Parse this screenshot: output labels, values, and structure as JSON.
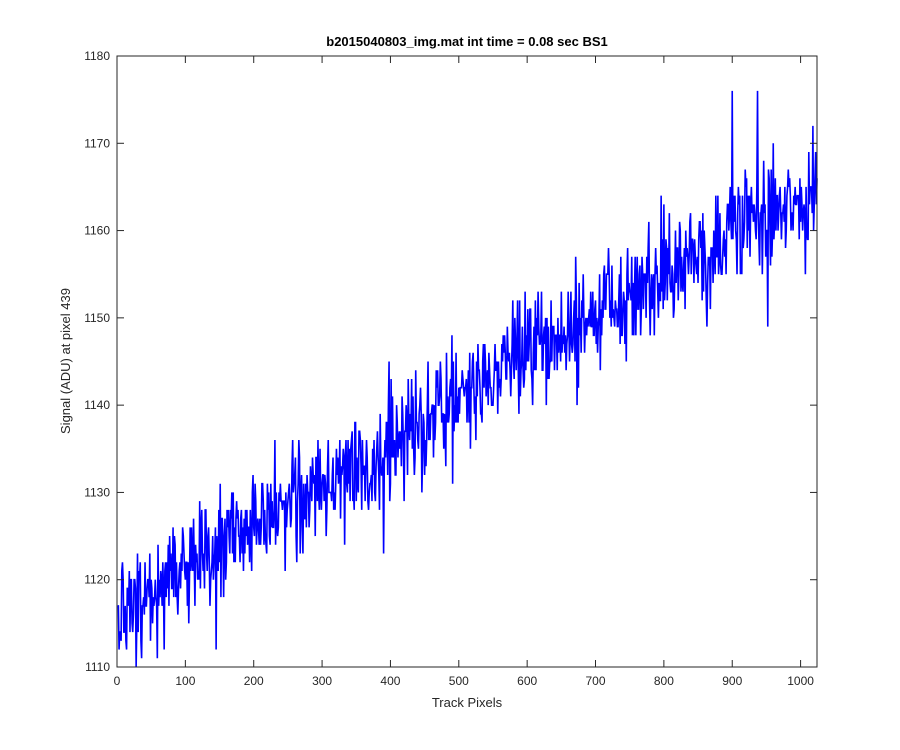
{
  "chart_data": {
    "type": "line",
    "title": "b2015040803_img.mat int time = 0.08 sec   BS1",
    "xlabel": "Track Pixels",
    "ylabel": "Signal (ADU) at pixel 439",
    "xlim": [
      0,
      1024
    ],
    "ylim": [
      1110,
      1180
    ],
    "xticks": [
      0,
      100,
      200,
      300,
      400,
      500,
      600,
      700,
      800,
      900,
      1000
    ],
    "yticks": [
      1110,
      1120,
      1130,
      1140,
      1150,
      1160,
      1170,
      1180
    ],
    "grid": false,
    "box": true,
    "series": [
      {
        "color": "#0000ff",
        "x_start": 1,
        "x_step": 1,
        "trend": {
          "x": [
            0,
            50,
            100,
            200,
            300,
            400,
            500,
            600,
            700,
            800,
            900,
            1024
          ],
          "y": [
            1116,
            1119,
            1121,
            1126,
            1131,
            1135,
            1141,
            1146,
            1150,
            1155,
            1160,
            1164
          ]
        },
        "noise_amplitude": 3.2,
        "extremes": [
          {
            "x": 28,
            "y": 1110
          },
          {
            "x": 59,
            "y": 1111
          },
          {
            "x": 145,
            "y": 1112
          },
          {
            "x": 390,
            "y": 1123
          },
          {
            "x": 398,
            "y": 1145
          },
          {
            "x": 455,
            "y": 1145
          },
          {
            "x": 900,
            "y": 1176
          },
          {
            "x": 937,
            "y": 1176
          },
          {
            "x": 952,
            "y": 1149
          },
          {
            "x": 1018,
            "y": 1172
          }
        ]
      }
    ]
  }
}
